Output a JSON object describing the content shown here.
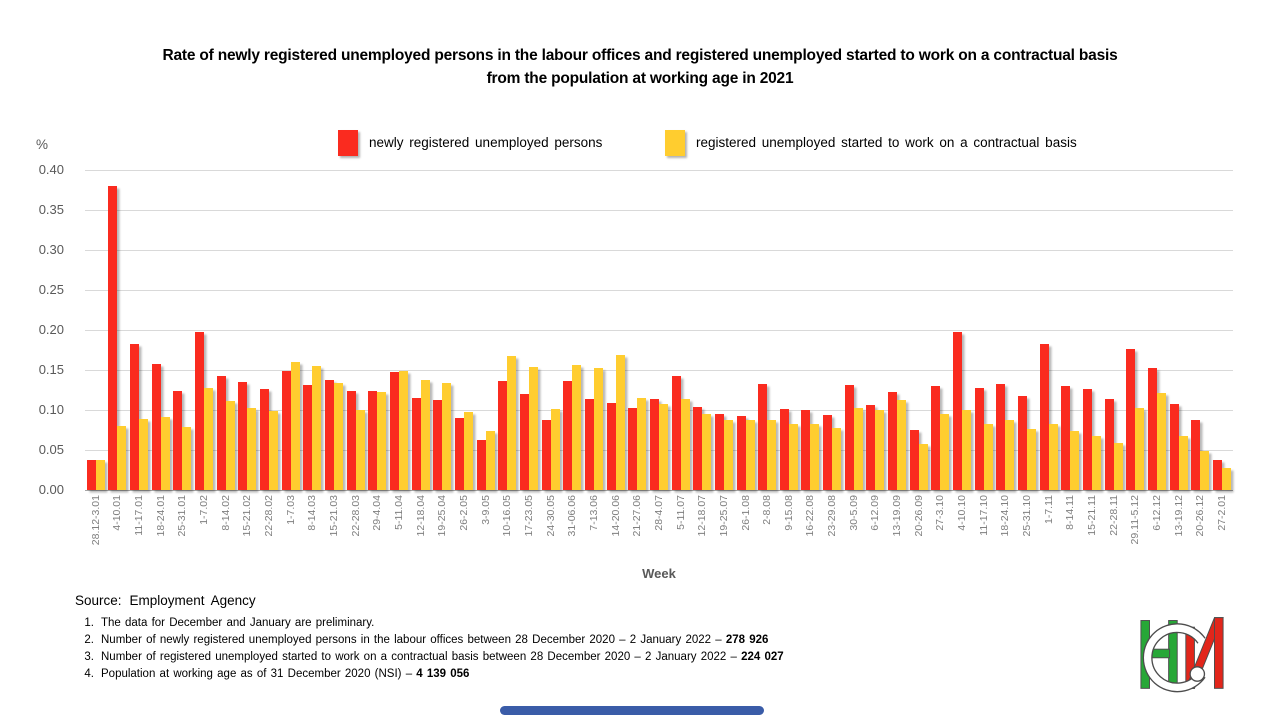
{
  "title": {
    "line1": "Rate of newly registered unemployed persons in the labour offices and registered unemployed started to work on a contractual basis",
    "line2": "from the population at working age in 2021"
  },
  "y_axis": {
    "unit": "%",
    "ticks": [
      "0.40",
      "0.35",
      "0.30",
      "0.25",
      "0.20",
      "0.15",
      "0.10",
      "0.05",
      "0.00"
    ]
  },
  "x_axis": {
    "title": "Week"
  },
  "legend": {
    "items": [
      {
        "label": "newly registered unemployed persons",
        "color": "#fa2b1f"
      },
      {
        "label": "registered unemployed started to work on a contractual basis",
        "color": "#ffcd2f"
      }
    ]
  },
  "chart_data": {
    "type": "bar",
    "title": "Rate of newly registered unemployed persons in the labour offices and registered unemployed started to work on a contractual basis from the population at working age in 2021",
    "xlabel": "Week",
    "ylabel": "%",
    "ylim": [
      0,
      0.4
    ],
    "ytick_step": 0.05,
    "grid": true,
    "legend_position": "top",
    "categories": [
      "28.12-3.01",
      "4-10.01",
      "11-17.01",
      "18-24.01",
      "25-31.01",
      "1-7.02",
      "8-14.02",
      "15-21.02",
      "22-28.02",
      "1-7.03",
      "8-14.03",
      "15-21.03",
      "22-28.03",
      "29-4.04",
      "5-11.04",
      "12-18.04",
      "19-25.04",
      "26-2.05",
      "3-9.05",
      "10-16.05",
      "17-23.05",
      "24-30.05",
      "31-06.06",
      "7-13.06",
      "14-20.06",
      "21-27.06",
      "28-4.07",
      "5-11.07",
      "12-18.07",
      "19-25.07",
      "26-1.08",
      "2-8.08",
      "9-15.08",
      "16-22.08",
      "23-29.08",
      "30-5.09",
      "6-12.09",
      "13-19.09",
      "20-26.09",
      "27-3.10",
      "4-10.10",
      "11-17.10",
      "18-24.10",
      "25-31.10",
      "1-7.11",
      "8-14.11",
      "15-21.11",
      "22-28.11",
      "29.11-5.12",
      "6-12.12",
      "13-19.12",
      "20-26.12",
      "27-2.01"
    ],
    "series": [
      {
        "name": "newly registered unemployed persons",
        "color": "#fa2b1f",
        "values": [
          0.038,
          0.38,
          0.182,
          0.158,
          0.124,
          0.197,
          0.142,
          0.135,
          0.126,
          0.149,
          0.131,
          0.137,
          0.124,
          0.124,
          0.147,
          0.115,
          0.113,
          0.09,
          0.063,
          0.136,
          0.12,
          0.088,
          0.136,
          0.114,
          0.109,
          0.103,
          0.114,
          0.142,
          0.104,
          0.095,
          0.093,
          0.133,
          0.101,
          0.1,
          0.094,
          0.131,
          0.106,
          0.123,
          0.075,
          0.13,
          0.197,
          0.128,
          0.132,
          0.118,
          0.182,
          0.13,
          0.126,
          0.114,
          0.176,
          0.152,
          0.107,
          0.088,
          0.038
        ]
      },
      {
        "name": "registered unemployed started to work on a contractual basis",
        "color": "#ffcd2f",
        "values": [
          0.038,
          0.08,
          0.089,
          0.091,
          0.079,
          0.128,
          0.111,
          0.103,
          0.099,
          0.16,
          0.155,
          0.134,
          0.1,
          0.122,
          0.149,
          0.137,
          0.134,
          0.097,
          0.074,
          0.168,
          0.154,
          0.101,
          0.156,
          0.153,
          0.169,
          0.115,
          0.107,
          0.114,
          0.095,
          0.087,
          0.087,
          0.087,
          0.083,
          0.082,
          0.078,
          0.103,
          0.1,
          0.113,
          0.058,
          0.095,
          0.1,
          0.082,
          0.088,
          0.076,
          0.083,
          0.074,
          0.068,
          0.059,
          0.102,
          0.121,
          0.067,
          0.049,
          0.028
        ]
      }
    ]
  },
  "footer": {
    "source_label": "Source:",
    "source_value": "Employment Agency",
    "notes": [
      {
        "num": "1.",
        "text": "The data for December and January are preliminary.",
        "bold": ""
      },
      {
        "num": "2.",
        "text": "Number of newly registered unemployed persons in the labour offices between 28 December 2020 – 2 January 2022 – ",
        "bold": "278 926"
      },
      {
        "num": "3.",
        "text": "Number of registered unemployed started to work on a contractual basis between 28 December 2020 – 2 January 2022 – ",
        "bold": "224 027"
      },
      {
        "num": "4.",
        "text": "Population at working age as of 31 December 2020 (NSI) – ",
        "bold": "4 139 056"
      }
    ]
  },
  "colors": {
    "red": "#fa2b1f",
    "yellow": "#ffcd2f",
    "gridline": "#d9d9d9",
    "axis_line": "#a6a6a6",
    "tick_text": "#595959",
    "xlabel_text": "#7f7f7f",
    "footer_bar_blue": "#3a5ca8",
    "logo_green": "#27a737",
    "logo_red": "#e2261b",
    "logo_outline": "#4d4d4d"
  }
}
